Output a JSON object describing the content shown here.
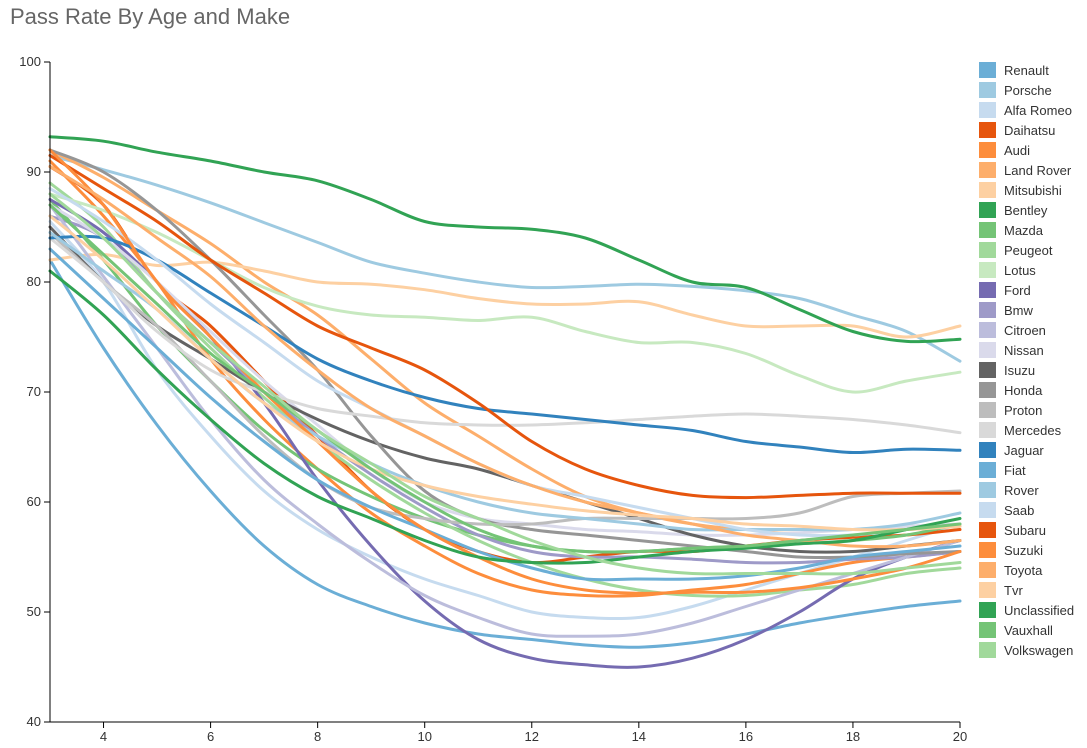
{
  "chart_data": {
    "type": "line",
    "title": "Pass Rate By Age and Make",
    "xlabel": "",
    "ylabel": "",
    "xlim": [
      3,
      20
    ],
    "ylim": [
      40,
      100
    ],
    "x_ticks": [
      4,
      6,
      8,
      10,
      12,
      14,
      16,
      18,
      20
    ],
    "y_ticks": [
      40,
      50,
      60,
      70,
      80,
      90,
      100
    ],
    "grid": false,
    "legend_position": "right",
    "x": [
      3,
      4,
      5,
      6,
      7,
      8,
      9,
      10,
      11,
      12,
      13,
      14,
      15,
      16,
      17,
      18,
      19,
      20
    ],
    "series": [
      {
        "name": "Renault",
        "color": "#6baed6",
        "values": [
          82,
          74,
          67,
          61,
          56,
          52.5,
          50.5,
          49,
          48,
          47.5,
          47,
          46.8,
          47.2,
          48,
          49,
          49.8,
          50.5,
          51
        ]
      },
      {
        "name": "Porsche",
        "color": "#9ecae1",
        "values": [
          91.5,
          90.2,
          88.8,
          87.2,
          85.4,
          83.6,
          81.8,
          80.8,
          80,
          79.5,
          79.6,
          79.8,
          79.6,
          79.2,
          78.5,
          77,
          75.5,
          72.8
        ]
      },
      {
        "name": "Alfa Romeo",
        "color": "#c6dbef",
        "values": [
          85.5,
          80,
          72,
          66,
          61,
          57.5,
          55,
          53,
          51.5,
          50,
          49.5,
          49.5,
          50.5,
          52,
          53.5,
          55,
          56.5,
          58
        ]
      },
      {
        "name": "Daihatsu",
        "color": "#e6550d",
        "values": [
          90.5,
          87,
          80,
          76,
          71,
          66,
          61,
          57.5,
          55.5,
          54.5,
          55,
          55.5,
          55.5,
          56,
          56.5,
          56.8,
          57,
          57.5
        ]
      },
      {
        "name": "Audi",
        "color": "#fd8d3c",
        "values": [
          91,
          86,
          80,
          73,
          67.5,
          63,
          59,
          56,
          53.5,
          52,
          51.5,
          51.5,
          52,
          52.5,
          53.5,
          54.5,
          55,
          55.5
        ]
      },
      {
        "name": "Land Rover",
        "color": "#fdae6b",
        "values": [
          92,
          89.5,
          86.5,
          83.5,
          80,
          77,
          73,
          69,
          66,
          63,
          60.5,
          59,
          58,
          57.5,
          57.5,
          57.5,
          57.5,
          57.8
        ]
      },
      {
        "name": "Mitsubishi",
        "color": "#fdd0a2",
        "values": [
          82,
          82.5,
          81.5,
          81.8,
          81,
          80,
          79.8,
          79.3,
          78.5,
          78,
          78,
          78.2,
          77,
          76,
          76,
          76,
          75,
          76
        ]
      },
      {
        "name": "Bentley",
        "color": "#31a354",
        "values": [
          93.2,
          92.8,
          91.8,
          91,
          90,
          89.2,
          87.5,
          85.5,
          85,
          84.8,
          84,
          82,
          80,
          79.5,
          77.5,
          75.5,
          74.6,
          74.8
        ]
      },
      {
        "name": "Mazda",
        "color": "#74c476",
        "values": [
          87.5,
          82,
          76,
          71,
          66.5,
          63,
          60.5,
          58.5,
          57,
          56,
          55.5,
          55.5,
          55.8,
          56,
          56.2,
          56.5,
          57,
          58
        ]
      },
      {
        "name": "Peugeot",
        "color": "#a1d99b",
        "values": [
          89,
          85,
          79,
          74,
          69.5,
          65.5,
          62,
          59,
          56.5,
          54.5,
          53,
          52,
          51.5,
          51.5,
          52,
          52.5,
          53.5,
          54
        ]
      },
      {
        "name": "Lotus",
        "color": "#c7e9c0",
        "values": [
          88,
          86.5,
          84.5,
          82,
          79.5,
          77.8,
          77,
          76.8,
          76.5,
          76.8,
          75.5,
          74.5,
          74.5,
          73.5,
          71.5,
          70,
          71,
          71.8
        ]
      },
      {
        "name": "Ford",
        "color": "#756bb1",
        "values": [
          87.5,
          84.5,
          80,
          75,
          69,
          62,
          56,
          51,
          47.5,
          45.8,
          45.2,
          45,
          45.8,
          47.5,
          50,
          53,
          55,
          56.5
        ]
      },
      {
        "name": "Bmw",
        "color": "#9e9ac8",
        "values": [
          86,
          84,
          79,
          74.5,
          70,
          66,
          62.5,
          59.5,
          57,
          55.5,
          55,
          55,
          54.8,
          54.5,
          54.5,
          54.8,
          55,
          55.5
        ]
      },
      {
        "name": "Citroen",
        "color": "#bcbddc",
        "values": [
          87,
          80.5,
          74,
          67.5,
          62,
          58,
          54.5,
          51.5,
          49.5,
          48,
          47.8,
          48,
          49,
          50.5,
          52,
          53.5,
          55,
          56.5
        ]
      },
      {
        "name": "Nissan",
        "color": "#dadaeb",
        "values": [
          87,
          84,
          80,
          75.5,
          71,
          67,
          63,
          60,
          58.5,
          58,
          57.5,
          57.3,
          57,
          57,
          57.2,
          57.5,
          57.8,
          58
        ]
      },
      {
        "name": "Isuzu",
        "color": "#636363",
        "values": [
          85,
          80,
          76,
          73,
          70,
          67.5,
          65.5,
          64,
          63,
          61.5,
          60,
          58.5,
          57,
          56,
          55.5,
          55.5,
          56,
          56.5
        ]
      },
      {
        "name": "Honda",
        "color": "#969696",
        "values": [
          92,
          90,
          86.5,
          82,
          77,
          72,
          66,
          61,
          58.5,
          57.5,
          57,
          56.5,
          56,
          55.5,
          55,
          55,
          55.3,
          55.5
        ]
      },
      {
        "name": "Proton",
        "color": "#bdbdbd",
        "values": [
          84.5,
          80,
          76,
          71,
          66,
          62,
          59.5,
          58.5,
          58,
          58,
          58.5,
          58.5,
          58.5,
          58.5,
          59,
          60.5,
          60.8,
          61
        ]
      },
      {
        "name": "Mercedes",
        "color": "#d9d9d9",
        "values": [
          84,
          80,
          75.5,
          72,
          70,
          68.5,
          67.8,
          67.2,
          67,
          67,
          67.2,
          67.5,
          67.8,
          68,
          67.8,
          67.5,
          67,
          66.3
        ]
      },
      {
        "name": "Jaguar",
        "color": "#3182bd",
        "values": [
          84,
          84,
          82,
          79,
          76,
          73,
          71,
          69.5,
          68.5,
          68,
          67.5,
          67,
          66.5,
          65.5,
          65,
          64.5,
          64.8,
          64.7
        ]
      },
      {
        "name": "Fiat",
        "color": "#6baed6",
        "values": [
          83,
          78.5,
          74,
          69.5,
          65.5,
          62,
          59.5,
          57.5,
          55.5,
          54,
          53,
          53,
          53,
          53.3,
          54,
          55,
          55.5,
          56
        ]
      },
      {
        "name": "Rover",
        "color": "#9ecae1",
        "values": [
          84.5,
          81,
          77.5,
          73,
          69,
          66,
          63.5,
          61.5,
          60,
          59,
          58.5,
          58,
          57.5,
          57.5,
          57.5,
          57.5,
          58,
          59
        ]
      },
      {
        "name": "Saab",
        "color": "#c6dbef",
        "values": [
          88.5,
          85.5,
          82,
          78,
          74.5,
          71,
          68.5,
          66,
          63.5,
          61.5,
          60.5,
          59.5,
          58.5,
          57.5,
          57,
          57,
          57.5,
          58
        ]
      },
      {
        "name": "Subaru",
        "color": "#e6550d",
        "values": [
          91.5,
          88.5,
          85.5,
          82,
          79,
          76,
          74,
          72,
          69,
          65.5,
          63,
          61.5,
          60.6,
          60.4,
          60.6,
          60.8,
          60.8,
          60.8
        ]
      },
      {
        "name": "Suzuki",
        "color": "#fd8d3c",
        "values": [
          92,
          87,
          80,
          75,
          70,
          65.5,
          61,
          57.5,
          55,
          53,
          52,
          51.7,
          51.8,
          51.8,
          52.2,
          53,
          54,
          55.5
        ]
      },
      {
        "name": "Toyota",
        "color": "#fdae6b",
        "values": [
          90.5,
          87.5,
          84,
          80.5,
          76,
          72,
          68.5,
          66,
          63.5,
          61.5,
          60,
          59,
          58,
          57,
          56.5,
          56,
          56,
          56.5
        ]
      },
      {
        "name": "Tvr",
        "color": "#fdd0a2",
        "values": [
          86,
          82,
          77.5,
          73,
          69,
          65.5,
          63,
          61.5,
          60.5,
          59.8,
          59.2,
          58.8,
          58.5,
          58,
          57.8,
          57.5,
          57.5,
          57.8
        ]
      },
      {
        "name": "Unclassified",
        "color": "#31a354",
        "values": [
          81,
          77,
          72,
          67.5,
          63.5,
          60.5,
          58.5,
          56.5,
          55,
          54.5,
          54.5,
          55,
          55.5,
          55.8,
          56.2,
          56.5,
          57.5,
          58.5
        ]
      },
      {
        "name": "Vauxhall",
        "color": "#74c476",
        "values": [
          87,
          82.5,
          78,
          73.5,
          70,
          66.5,
          63,
          60,
          57.5,
          56,
          55.5,
          55.5,
          55.8,
          56,
          56.5,
          57,
          57.5,
          58
        ]
      },
      {
        "name": "Volkswagen",
        "color": "#a1d99b",
        "values": [
          88,
          84,
          79,
          74.5,
          70.5,
          66.5,
          63.5,
          60.5,
          58.5,
          56.5,
          55,
          54,
          53.5,
          53.5,
          53.5,
          53.5,
          54,
          54.5
        ]
      }
    ]
  }
}
